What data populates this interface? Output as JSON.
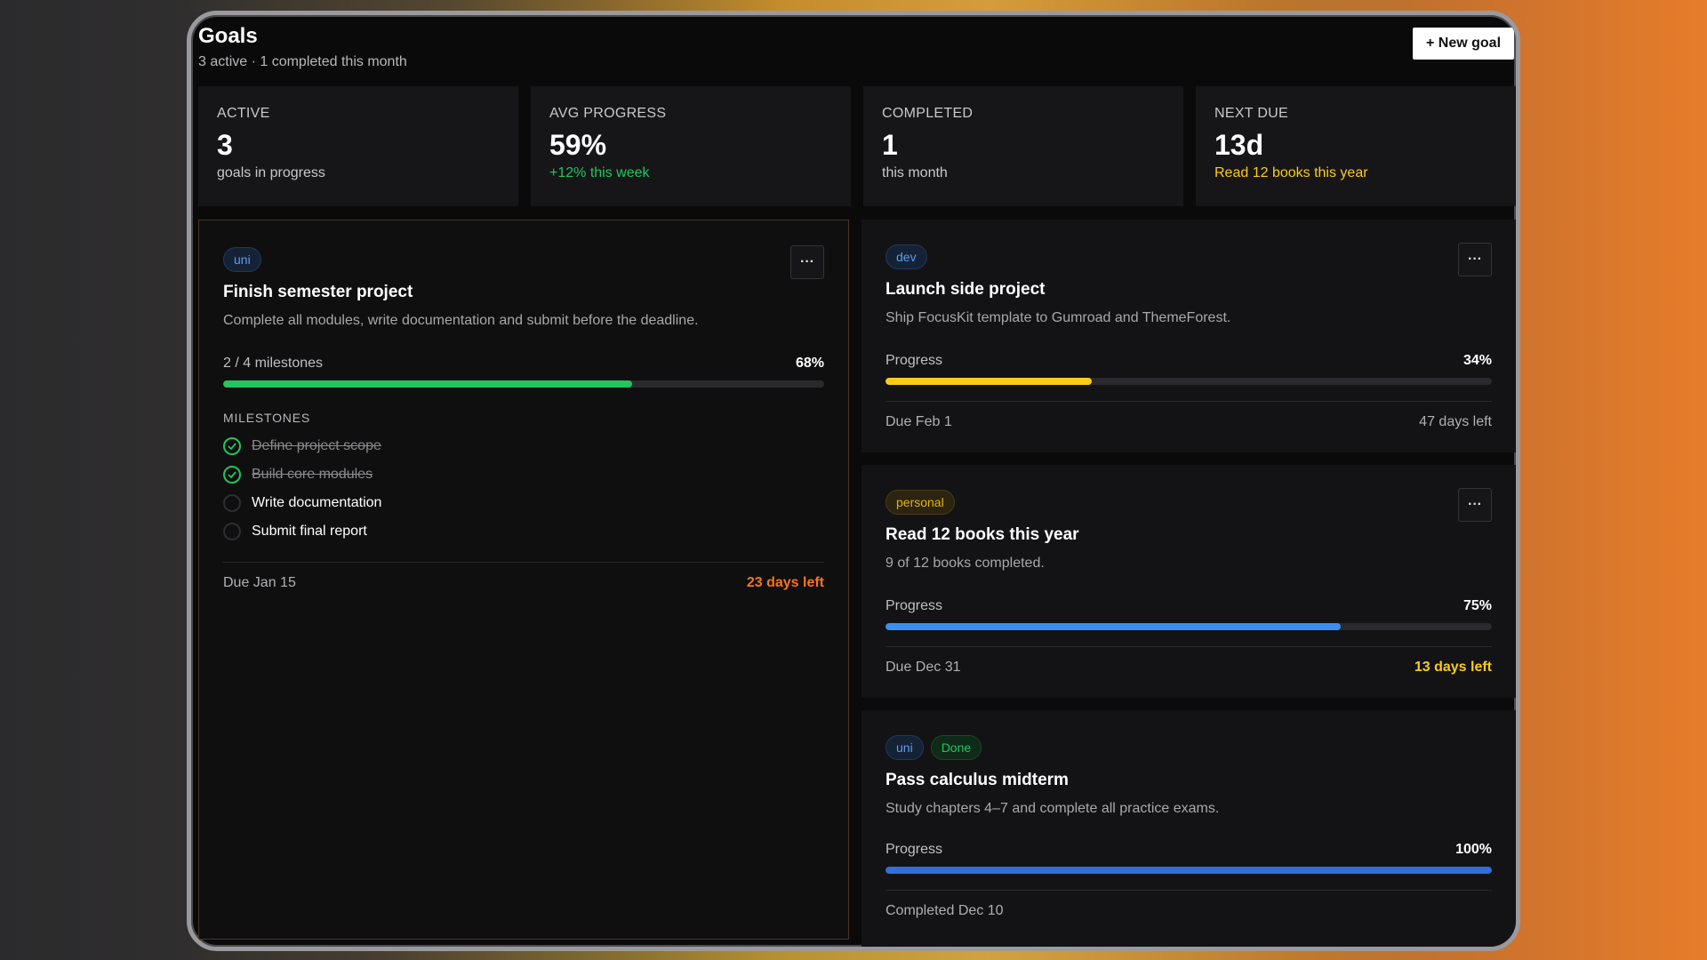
{
  "header": {
    "title": "Goals",
    "subtitle": "3 active · 1 completed this month",
    "new_goal_label": "+ New goal"
  },
  "stats": [
    {
      "label": "ACTIVE",
      "value": "3",
      "note": "goals in progress",
      "note_color": "default"
    },
    {
      "label": "AVG PROGRESS",
      "value": "59%",
      "note": "+12% this week",
      "note_color": "green"
    },
    {
      "label": "COMPLETED",
      "value": "1",
      "note": "this month",
      "note_color": "default"
    },
    {
      "label": "NEXT DUE",
      "value": "13d",
      "note": "Read 12 books this year",
      "note_color": "yellow"
    }
  ],
  "feature_goal": {
    "tag": "uni",
    "title": "Finish semester project",
    "description": "Complete all modules, write documentation and submit before the deadline.",
    "progress_label": "2 / 4 milestones",
    "progress_pct": "68%",
    "progress": 0.68,
    "bar_color": "#22c55e",
    "milestones_heading": "MILESTONES",
    "milestones": [
      {
        "label": "Define project scope",
        "done": true
      },
      {
        "label": "Build core modules",
        "done": true
      },
      {
        "label": "Write documentation",
        "done": false
      },
      {
        "label": "Submit final report",
        "done": false
      }
    ],
    "due": "Due Jan 15",
    "days_left": "23 days left"
  },
  "goals": [
    {
      "tags": [
        "dev"
      ],
      "title": "Launch side project",
      "description": "Ship FocusKit template to Gumroad and ThemeForest.",
      "progress_label": "Progress",
      "progress_pct": "34%",
      "progress": 0.34,
      "bar_color": "#facc15",
      "due": "Due Feb 1",
      "days_left": "47 days left"
    },
    {
      "tags": [
        "personal"
      ],
      "title": "Read 12 books this year",
      "description": "9 of 12 books completed.",
      "progress_label": "Progress",
      "progress_pct": "75%",
      "progress": 0.75,
      "bar_color": "#3b8ef0",
      "due": "Due Dec 31",
      "days_left": "13 days left"
    },
    {
      "tags": [
        "uni",
        "Done"
      ],
      "title": "Pass calculus midterm",
      "description": "Study chapters 4–7 and complete all practice exams.",
      "progress_label": "Progress",
      "progress_pct": "100%",
      "progress": 1.0,
      "bar_color": "#2f6fd6",
      "due": "Completed Dec 10",
      "days_left": ""
    }
  ],
  "menu_glyph": "···"
}
